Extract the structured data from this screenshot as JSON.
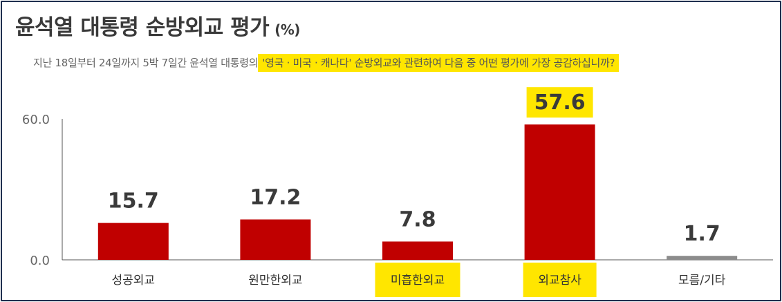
{
  "header": {
    "title": "윤석열 대통령 순방외교 평가",
    "unit": "(%)",
    "subtitle_plain": "지난 18일부터 24일까지 5박 7일간 윤석열 대통령의",
    "subtitle_highlight": "'영국 · 미국 · 캐나다' 순방외교와 관련하여 다음 중 어떤 평가에 가장 공감하십니까?"
  },
  "colors": {
    "bar_main": "#c00000",
    "bar_other": "#8c8c8c",
    "highlight": "#ffe600",
    "axis": "#555555",
    "text": "#3a3a3a"
  },
  "chart_data": {
    "type": "bar",
    "categories": [
      "성공외교",
      "원만한외교",
      "미흡한외교",
      "외교참사",
      "모름/기타"
    ],
    "values": [
      15.7,
      17.2,
      7.8,
      57.6,
      1.7
    ],
    "value_labels": [
      "15.7",
      "17.2",
      "7.8",
      "57.6",
      "1.7"
    ],
    "y_ticks": [
      "0.0",
      "60.0"
    ],
    "ylim": [
      0,
      60
    ],
    "highlighted_categories": [
      "미흡한외교",
      "외교참사"
    ],
    "highlighted_value_labels": [
      "57.6"
    ],
    "grid": false
  }
}
